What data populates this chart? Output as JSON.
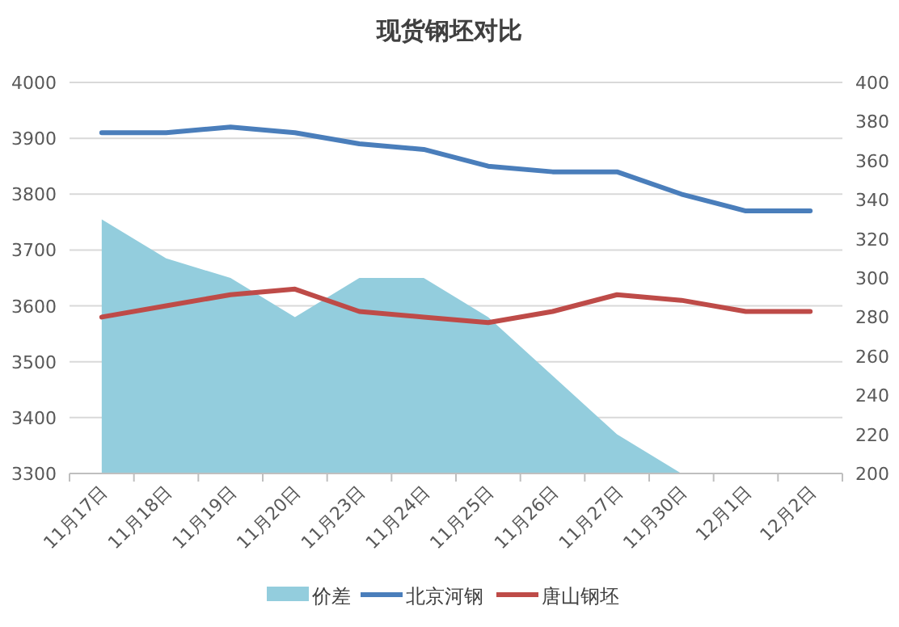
{
  "chart_data": {
    "type": "line",
    "title": "现货钢坯对比",
    "categories": [
      "11月17日",
      "11月18日",
      "11月19日",
      "11月20日",
      "11月23日",
      "11月24日",
      "11月25日",
      "11月26日",
      "11月27日",
      "11月30日",
      "12月1日",
      "12月2日"
    ],
    "series": [
      {
        "name": "价差",
        "type": "area",
        "axis": "y2",
        "color": "#93cddd",
        "values": [
          330,
          310,
          300,
          280,
          300,
          300,
          280,
          250,
          220,
          200,
          200,
          200
        ]
      },
      {
        "name": "北京河钢",
        "color": "#4a7ebb",
        "values": [
          3910,
          3910,
          3920,
          3910,
          3890,
          3880,
          3850,
          3840,
          3840,
          3800,
          3770,
          3770
        ]
      },
      {
        "name": "唐山钢坯",
        "color": "#be4b48",
        "values": [
          3580,
          3600,
          3620,
          3630,
          3590,
          3580,
          3570,
          3590,
          3620,
          3610,
          3590,
          3590
        ]
      }
    ],
    "ylim": [
      3300,
      4000
    ],
    "yticks": [
      3300,
      3400,
      3500,
      3600,
      3700,
      3800,
      3900,
      4000
    ],
    "y2lim": [
      200,
      400
    ],
    "y2ticks": [
      200,
      220,
      240,
      260,
      280,
      300,
      320,
      340,
      360,
      380,
      400
    ],
    "grid": "y",
    "legend": "bottom",
    "line_style": "solid",
    "marker": "none"
  }
}
